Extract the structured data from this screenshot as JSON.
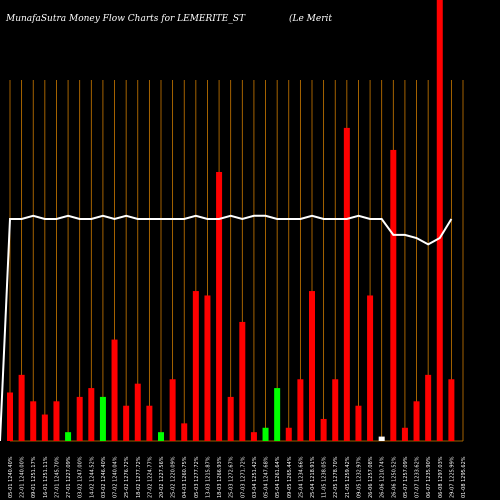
{
  "header": {
    "title": "MunafaSutra  Money Flow  Charts for LEMERITE_ST",
    "subtitle": "(Le   Merit"
  },
  "colors": {
    "background": "#000000",
    "grid": "#cc7a00",
    "sell_bar": "#ff0000",
    "buy_bar": "#00ff00",
    "volume_bar": "#ffffff",
    "price_line": "#ffffff"
  },
  "chart_data": {
    "type": "bar",
    "grid": true,
    "ylim": [
      0,
      100
    ],
    "price_ylim": [
      0,
      100
    ],
    "categories": [
      "05-01 1240.40%",
      "22-01 1240.00%",
      "09-01 1251.17%",
      "16-01 1251.11%",
      "27-01 1245.70%",
      "27-01 1227.09%",
      "03-02 1247.00%",
      "14-02 1244.52%",
      "03-02 1246.40%",
      "07-02 1240.04%",
      "25-02 1276.72%",
      "18-02 1277.72%",
      "27-02 1224.77%",
      "20-02 1227.56%",
      "25-02 1220.09%",
      "04-03 1260.75%",
      "05-03 1277.72%",
      "13-03 1215.87%",
      "18-03 1266.93%",
      "25-03 1272.67%",
      "07-03 1271.72%",
      "03-04 1251.42%",
      "05-04 1247.68%",
      "05-04 1261.64%",
      "09-05 1265.44%",
      "25-04 1234.66%",
      "25-04 1218.91%",
      "11-05 1238.05%",
      "22-05 1278.70%",
      "21-05 1259.42%",
      "09-05 1232.97%",
      "26-06 1257.08%",
      "26-06 1210.74%",
      "26-06 1250.52%",
      "05-07 1257.09%",
      "07-07 1233.62%",
      "06-07 1235.90%",
      "06-08 1297.03%",
      "29-07 1225.99%",
      "01-08 1295.62%"
    ],
    "series": [
      {
        "role": "money_flow",
        "values": [
          11,
          15,
          9,
          6,
          9,
          2,
          10,
          12,
          10,
          23,
          8,
          13,
          8,
          2,
          14,
          4,
          34,
          33,
          61,
          10,
          27,
          2,
          3,
          12,
          3,
          14,
          34,
          5,
          14,
          71,
          8,
          33,
          1,
          66,
          3,
          9,
          15,
          100,
          14,
          0
        ],
        "colors": [
          "sell",
          "sell",
          "sell",
          "sell",
          "sell",
          "buy",
          "sell",
          "sell",
          "buy",
          "sell",
          "sell",
          "sell",
          "sell",
          "buy",
          "sell",
          "sell",
          "sell",
          "sell",
          "sell",
          "sell",
          "sell",
          "sell",
          "buy",
          "buy",
          "sell",
          "sell",
          "sell",
          "sell",
          "sell",
          "sell",
          "sell",
          "sell",
          "volume",
          "sell",
          "sell",
          "sell",
          "sell",
          "sell",
          "sell",
          "sell"
        ]
      },
      {
        "role": "price",
        "values": [
          70,
          70,
          71,
          70,
          70,
          71,
          70,
          70,
          71,
          70,
          71,
          70,
          70,
          70,
          70,
          70,
          71,
          70,
          70,
          71,
          70,
          71,
          71,
          70,
          70,
          70,
          71,
          70,
          70,
          70,
          71,
          70,
          70,
          65,
          65,
          64,
          62,
          64,
          70,
          0
        ]
      }
    ]
  }
}
